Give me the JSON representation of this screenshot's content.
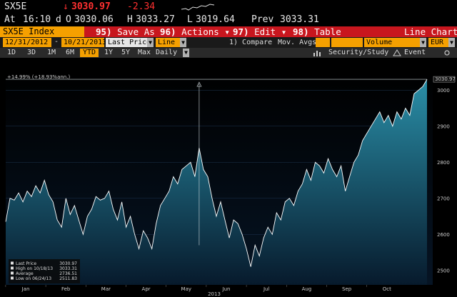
{
  "header": {
    "ticker": "SX5E",
    "down_arrow": "↓",
    "last": "3030.97",
    "change": "-2.34",
    "time_label": "At",
    "time": "16:10",
    "time_flag": "d",
    "open_label": "O",
    "open": "3030.06",
    "high_label": "H",
    "high": "3033.27",
    "low_label": "L",
    "low": "3019.64",
    "prev_label": "Prev",
    "prev": "3033.31"
  },
  "commands": {
    "security": "SX5E Index",
    "save_num": "95)",
    "save_label": "Save As",
    "actions_num": "96)",
    "actions_label": "Actions",
    "edit_num": "97)",
    "edit_label": "Edit",
    "table_num": "98)",
    "table_label": "Table",
    "title": "Line Chart",
    "dropdown_arrow": "▾"
  },
  "controls": {
    "start_date": "12/31/2012",
    "end_date": "10/21/2013",
    "date_sep": "-",
    "field": "Last Price",
    "style": "Line",
    "compare": "1) Compare",
    "mov_avgs": "Mov. Avgs",
    "volume": "Volume",
    "currency": "EUR",
    "down": "▼",
    "periods": [
      "1D",
      "3D",
      "1M",
      "6M",
      "YTD",
      "1Y",
      "5Y",
      "Max"
    ],
    "selected_period": "YTD",
    "frequency": "Daily",
    "security_study": "Security/Study",
    "event": "Event"
  },
  "chart_data": {
    "type": "area",
    "x_labels": [
      "Jan",
      "Feb",
      "Mar",
      "Apr",
      "May",
      "Jun",
      "Jul",
      "Aug",
      "Sep",
      "Oct"
    ],
    "year_label": "2013",
    "y_ticks": [
      2500,
      2600,
      2700,
      2800,
      2900,
      3000
    ],
    "ylim": [
      2460,
      3050
    ],
    "last_price_label": "3030.97",
    "annotation": "+14.99% (+18.93%ann.)",
    "series": [
      {
        "values": [
          2635,
          2700,
          2695,
          2715,
          2690,
          2720,
          2705,
          2735,
          2715,
          2750,
          2710,
          2690,
          2640,
          2620,
          2700,
          2655,
          2680,
          2640,
          2600,
          2650,
          2670,
          2705,
          2695,
          2700,
          2720,
          2670,
          2640,
          2690,
          2620,
          2650,
          2600,
          2560,
          2610,
          2590,
          2560,
          2630,
          2680,
          2700,
          2720,
          2760,
          2740,
          2780,
          2790,
          2800,
          2760,
          2840,
          2780,
          2760,
          2700,
          2650,
          2690,
          2640,
          2590,
          2640,
          2630,
          2600,
          2560,
          2510,
          2570,
          2540,
          2590,
          2620,
          2600,
          2660,
          2640,
          2690,
          2700,
          2680,
          2720,
          2740,
          2780,
          2750,
          2800,
          2790,
          2770,
          2810,
          2780,
          2760,
          2790,
          2720,
          2760,
          2800,
          2820,
          2860,
          2880,
          2900,
          2920,
          2940,
          2910,
          2930,
          2900,
          2940,
          2920,
          2950,
          2930,
          2990,
          3000,
          3010,
          3030
        ]
      }
    ],
    "legend": [
      {
        "label": "Last Price",
        "value": "3030.97"
      },
      {
        "label": "High on 10/18/13",
        "value": "3033.31"
      },
      {
        "label": "Average",
        "value": "2736.51"
      },
      {
        "label": "Low on 06/24/13",
        "value": "2511.83"
      }
    ],
    "colors": {
      "line": "#ffffff",
      "fill_top": "#2a8fa8",
      "fill_bottom": "#071a2c",
      "grid": "#1d3550"
    }
  }
}
